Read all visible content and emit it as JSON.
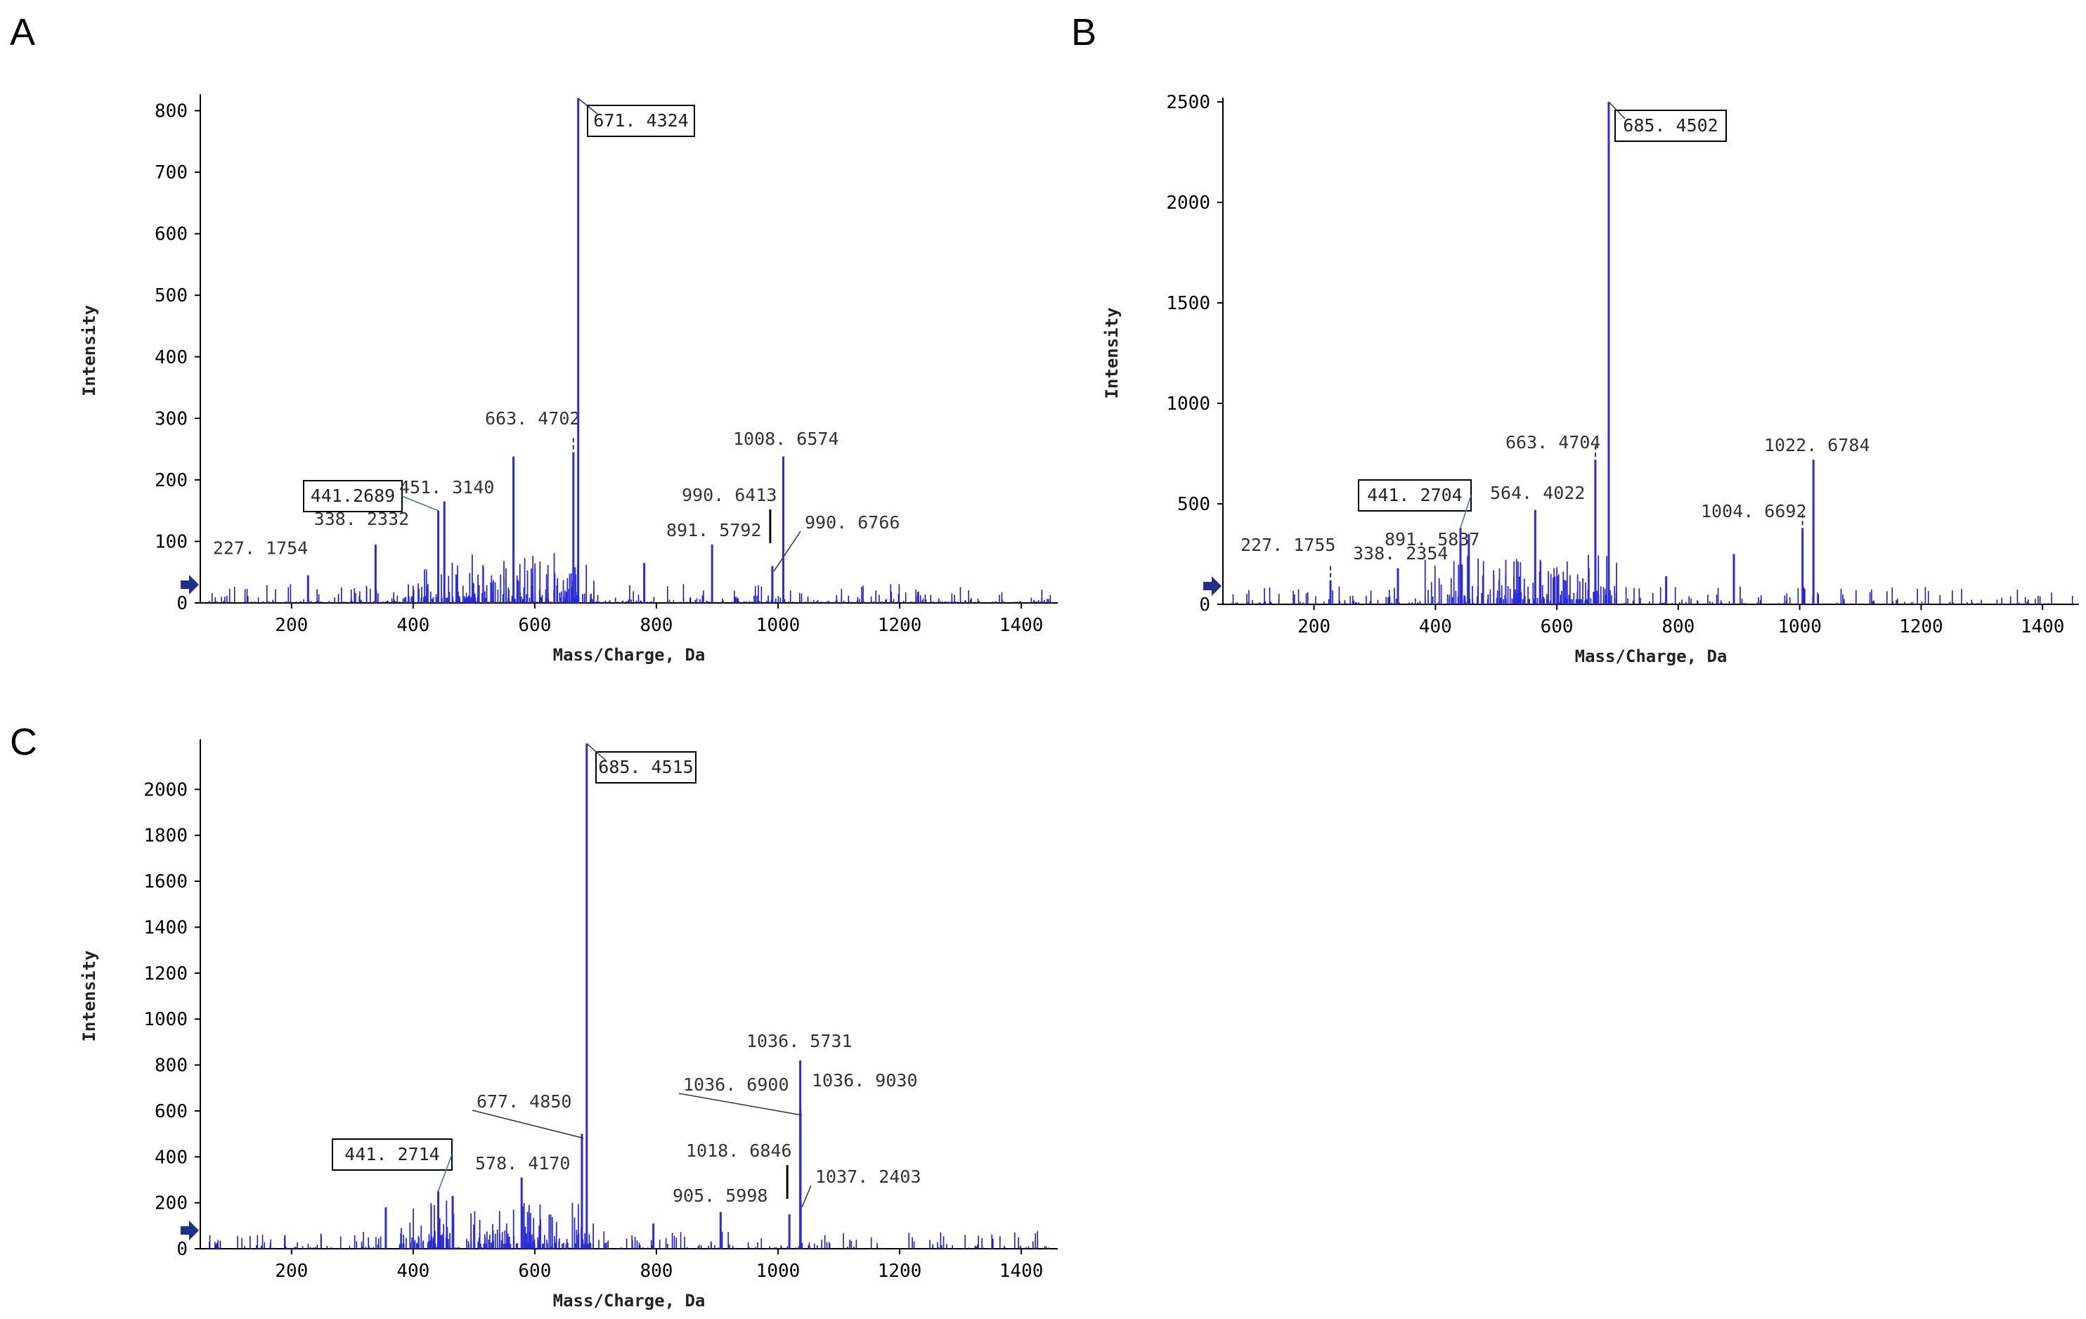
{
  "chart_data": [
    {
      "panel": "A",
      "type": "bar",
      "subtype": "mass_spectrum",
      "xlabel": "Mass/Charge, Da",
      "ylabel": "Intensity",
      "xlim": [
        50,
        1460
      ],
      "ylim": [
        0,
        820
      ],
      "xticks": [
        200,
        400,
        600,
        800,
        1000,
        1200,
        1400
      ],
      "yticks": [
        0,
        100,
        200,
        300,
        400,
        500,
        600,
        700,
        800
      ],
      "peaks": [
        {
          "mz": 227.1754,
          "intensity": 45,
          "label": "227. 1754"
        },
        {
          "mz": 338.2332,
          "intensity": 95,
          "label": "338. 2332"
        },
        {
          "mz": 441.2689,
          "intensity": 150,
          "label": "441.2689",
          "boxed": true
        },
        {
          "mz": 451.314,
          "intensity": 165,
          "label": "451. 3140"
        },
        {
          "mz": 565.0,
          "intensity": 238
        },
        {
          "mz": 663.4702,
          "intensity": 245,
          "label": "663. 4702"
        },
        {
          "mz": 671.4324,
          "intensity": 820,
          "label": "671. 4324",
          "boxed": true
        },
        {
          "mz": 891.5792,
          "intensity": 95,
          "label": "891. 5792"
        },
        {
          "mz": 990.6413,
          "intensity": 60,
          "label": "990. 6413"
        },
        {
          "mz": 990.6766,
          "intensity": 58,
          "label": "990. 6766"
        },
        {
          "mz": 1008.6574,
          "intensity": 238,
          "label": "1008. 6574"
        },
        {
          "mz": 780.0,
          "intensity": 65
        }
      ]
    },
    {
      "panel": "B",
      "type": "bar",
      "subtype": "mass_spectrum",
      "xlabel": "Mass/Charge, Da",
      "ylabel": "Intensity",
      "xlim": [
        50,
        1460
      ],
      "ylim": [
        0,
        2500
      ],
      "xticks": [
        200,
        400,
        600,
        800,
        1000,
        1200,
        1400
      ],
      "yticks": [
        0,
        500,
        1000,
        1500,
        2000,
        2500
      ],
      "peaks": [
        {
          "mz": 227.1755,
          "intensity": 120,
          "label": "227. 1755"
        },
        {
          "mz": 338.2354,
          "intensity": 180,
          "label": "338. 2354"
        },
        {
          "mz": 441.2704,
          "intensity": 380,
          "label": "441. 2704",
          "boxed": true
        },
        {
          "mz": 455.0,
          "intensity": 350
        },
        {
          "mz": 564.4022,
          "intensity": 470,
          "label": "564. 4022"
        },
        {
          "mz": 663.4704,
          "intensity": 720,
          "label": "663. 4704"
        },
        {
          "mz": 685.4502,
          "intensity": 2500,
          "label": "685. 4502",
          "boxed": true
        },
        {
          "mz": 780.0,
          "intensity": 140
        },
        {
          "mz": 891.5837,
          "intensity": 250,
          "label": "891. 5837"
        },
        {
          "mz": 1004.6692,
          "intensity": 380,
          "label": "1004. 6692"
        },
        {
          "mz": 1022.6784,
          "intensity": 720,
          "label": "1022. 6784"
        }
      ]
    },
    {
      "panel": "C",
      "type": "bar",
      "subtype": "mass_spectrum",
      "xlabel": "Mass/Charge, Da",
      "ylabel": "Intensity",
      "xlim": [
        50,
        1460
      ],
      "ylim": [
        0,
        2200
      ],
      "xticks": [
        200,
        400,
        600,
        800,
        1000,
        1200,
        1400
      ],
      "yticks": [
        0,
        200,
        400,
        600,
        800,
        1000,
        1200,
        1400,
        1600,
        1800,
        2000
      ],
      "peaks": [
        {
          "mz": 355.0,
          "intensity": 180
        },
        {
          "mz": 441.2714,
          "intensity": 250,
          "label": "441. 2714",
          "boxed": true
        },
        {
          "mz": 465.0,
          "intensity": 230
        },
        {
          "mz": 578.417,
          "intensity": 310,
          "label": "578. 4170"
        },
        {
          "mz": 677.485,
          "intensity": 500,
          "label": "677. 4850"
        },
        {
          "mz": 685.4515,
          "intensity": 2200,
          "label": "685. 4515",
          "boxed": true
        },
        {
          "mz": 795.0,
          "intensity": 110
        },
        {
          "mz": 905.5998,
          "intensity": 160,
          "label": "905. 5998"
        },
        {
          "mz": 1018.6846,
          "intensity": 150,
          "label": "1018. 6846"
        },
        {
          "mz": 1036.5731,
          "intensity": 820,
          "label": "1036. 5731"
        },
        {
          "mz": 1036.69,
          "intensity": 600,
          "label": "1036. 6900"
        },
        {
          "mz": 1036.903,
          "intensity": 600,
          "label": "1036. 9030"
        },
        {
          "mz": 1037.2403,
          "intensity": 200,
          "label": "1037. 2403"
        }
      ]
    }
  ]
}
